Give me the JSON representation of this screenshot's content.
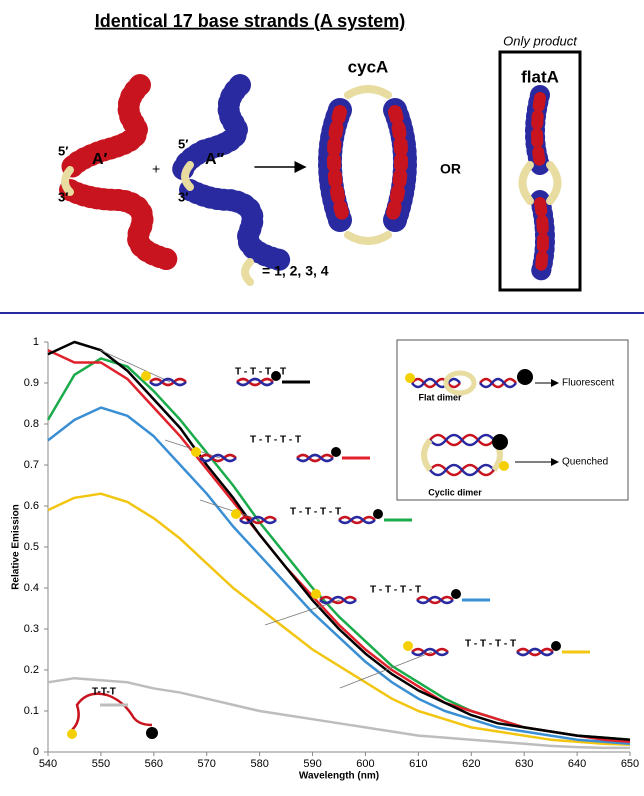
{
  "schematic": {
    "title": "Identical 17 base strands (A system)",
    "only_product": "Only product",
    "flat_label": "flatA",
    "cyclic_label": "cycA",
    "five_prime": "5′",
    "three_prime": "3′",
    "strand_a1": "A′",
    "strand_a2": "A″",
    "plus": "+",
    "or": "OR",
    "linker_key": "= 1, 2, 3, 4"
  },
  "chart_data": {
    "type": "line",
    "x_label": "Wavelength (nm)",
    "y_label": "Relative Emission",
    "x": [
      540,
      545,
      550,
      555,
      560,
      565,
      570,
      575,
      580,
      585,
      590,
      595,
      600,
      605,
      610,
      615,
      620,
      625,
      630,
      635,
      640,
      645,
      650
    ],
    "series": [
      {
        "color": "#000000",
        "values": [
          0.97,
          1.0,
          0.98,
          0.93,
          0.86,
          0.79,
          0.7,
          0.62,
          0.53,
          0.45,
          0.37,
          0.3,
          0.24,
          0.19,
          0.15,
          0.12,
          0.09,
          0.07,
          0.06,
          0.05,
          0.04,
          0.035,
          0.03
        ]
      },
      {
        "color": "#e0202a",
        "values": [
          0.98,
          0.95,
          0.95,
          0.91,
          0.84,
          0.77,
          0.69,
          0.61,
          0.53,
          0.45,
          0.38,
          0.31,
          0.25,
          0.2,
          0.16,
          0.12,
          0.1,
          0.08,
          0.06,
          0.05,
          0.04,
          0.03,
          0.025
        ]
      },
      {
        "color": "#1aab4a",
        "values": [
          0.81,
          0.92,
          0.96,
          0.94,
          0.88,
          0.81,
          0.73,
          0.65,
          0.56,
          0.48,
          0.4,
          0.33,
          0.27,
          0.21,
          0.17,
          0.13,
          0.1,
          0.08,
          0.06,
          0.05,
          0.04,
          0.035,
          0.03
        ]
      },
      {
        "color": "#3a8fd4",
        "values": [
          0.76,
          0.81,
          0.84,
          0.82,
          0.77,
          0.7,
          0.63,
          0.55,
          0.48,
          0.41,
          0.34,
          0.28,
          0.22,
          0.17,
          0.13,
          0.1,
          0.08,
          0.06,
          0.05,
          0.04,
          0.03,
          0.025,
          0.02
        ]
      },
      {
        "color": "#f2c511",
        "values": [
          0.59,
          0.62,
          0.63,
          0.61,
          0.57,
          0.52,
          0.46,
          0.4,
          0.35,
          0.3,
          0.25,
          0.21,
          0.17,
          0.13,
          0.1,
          0.08,
          0.06,
          0.05,
          0.04,
          0.03,
          0.025,
          0.02,
          0.018
        ]
      },
      {
        "color": "#bdbdbd",
        "values": [
          0.17,
          0.18,
          0.175,
          0.17,
          0.155,
          0.145,
          0.13,
          0.115,
          0.1,
          0.09,
          0.08,
          0.07,
          0.06,
          0.05,
          0.04,
          0.035,
          0.03,
          0.025,
          0.02,
          0.015,
          0.012,
          0.01,
          0.01
        ]
      }
    ],
    "xlim": [
      540,
      650
    ],
    "xticks": [
      540,
      550,
      560,
      570,
      580,
      590,
      600,
      610,
      620,
      630,
      640,
      650
    ],
    "ylim": [
      0,
      1
    ],
    "yticks": [
      0,
      0.1,
      0.2,
      0.3,
      0.4,
      0.5,
      0.6,
      0.7,
      0.8,
      0.9,
      1
    ],
    "linker_labels": [
      "T - T - T - T",
      "T - T - T - T",
      "T - T - T - T",
      "T - T - T - T",
      "T - T - T - T",
      "T-T-T"
    ],
    "inset": {
      "flat": "Flat dimer",
      "fluorescent": "Fluorescent",
      "cyclic": "Cyclic dimer",
      "quenched": "Quenched"
    }
  }
}
